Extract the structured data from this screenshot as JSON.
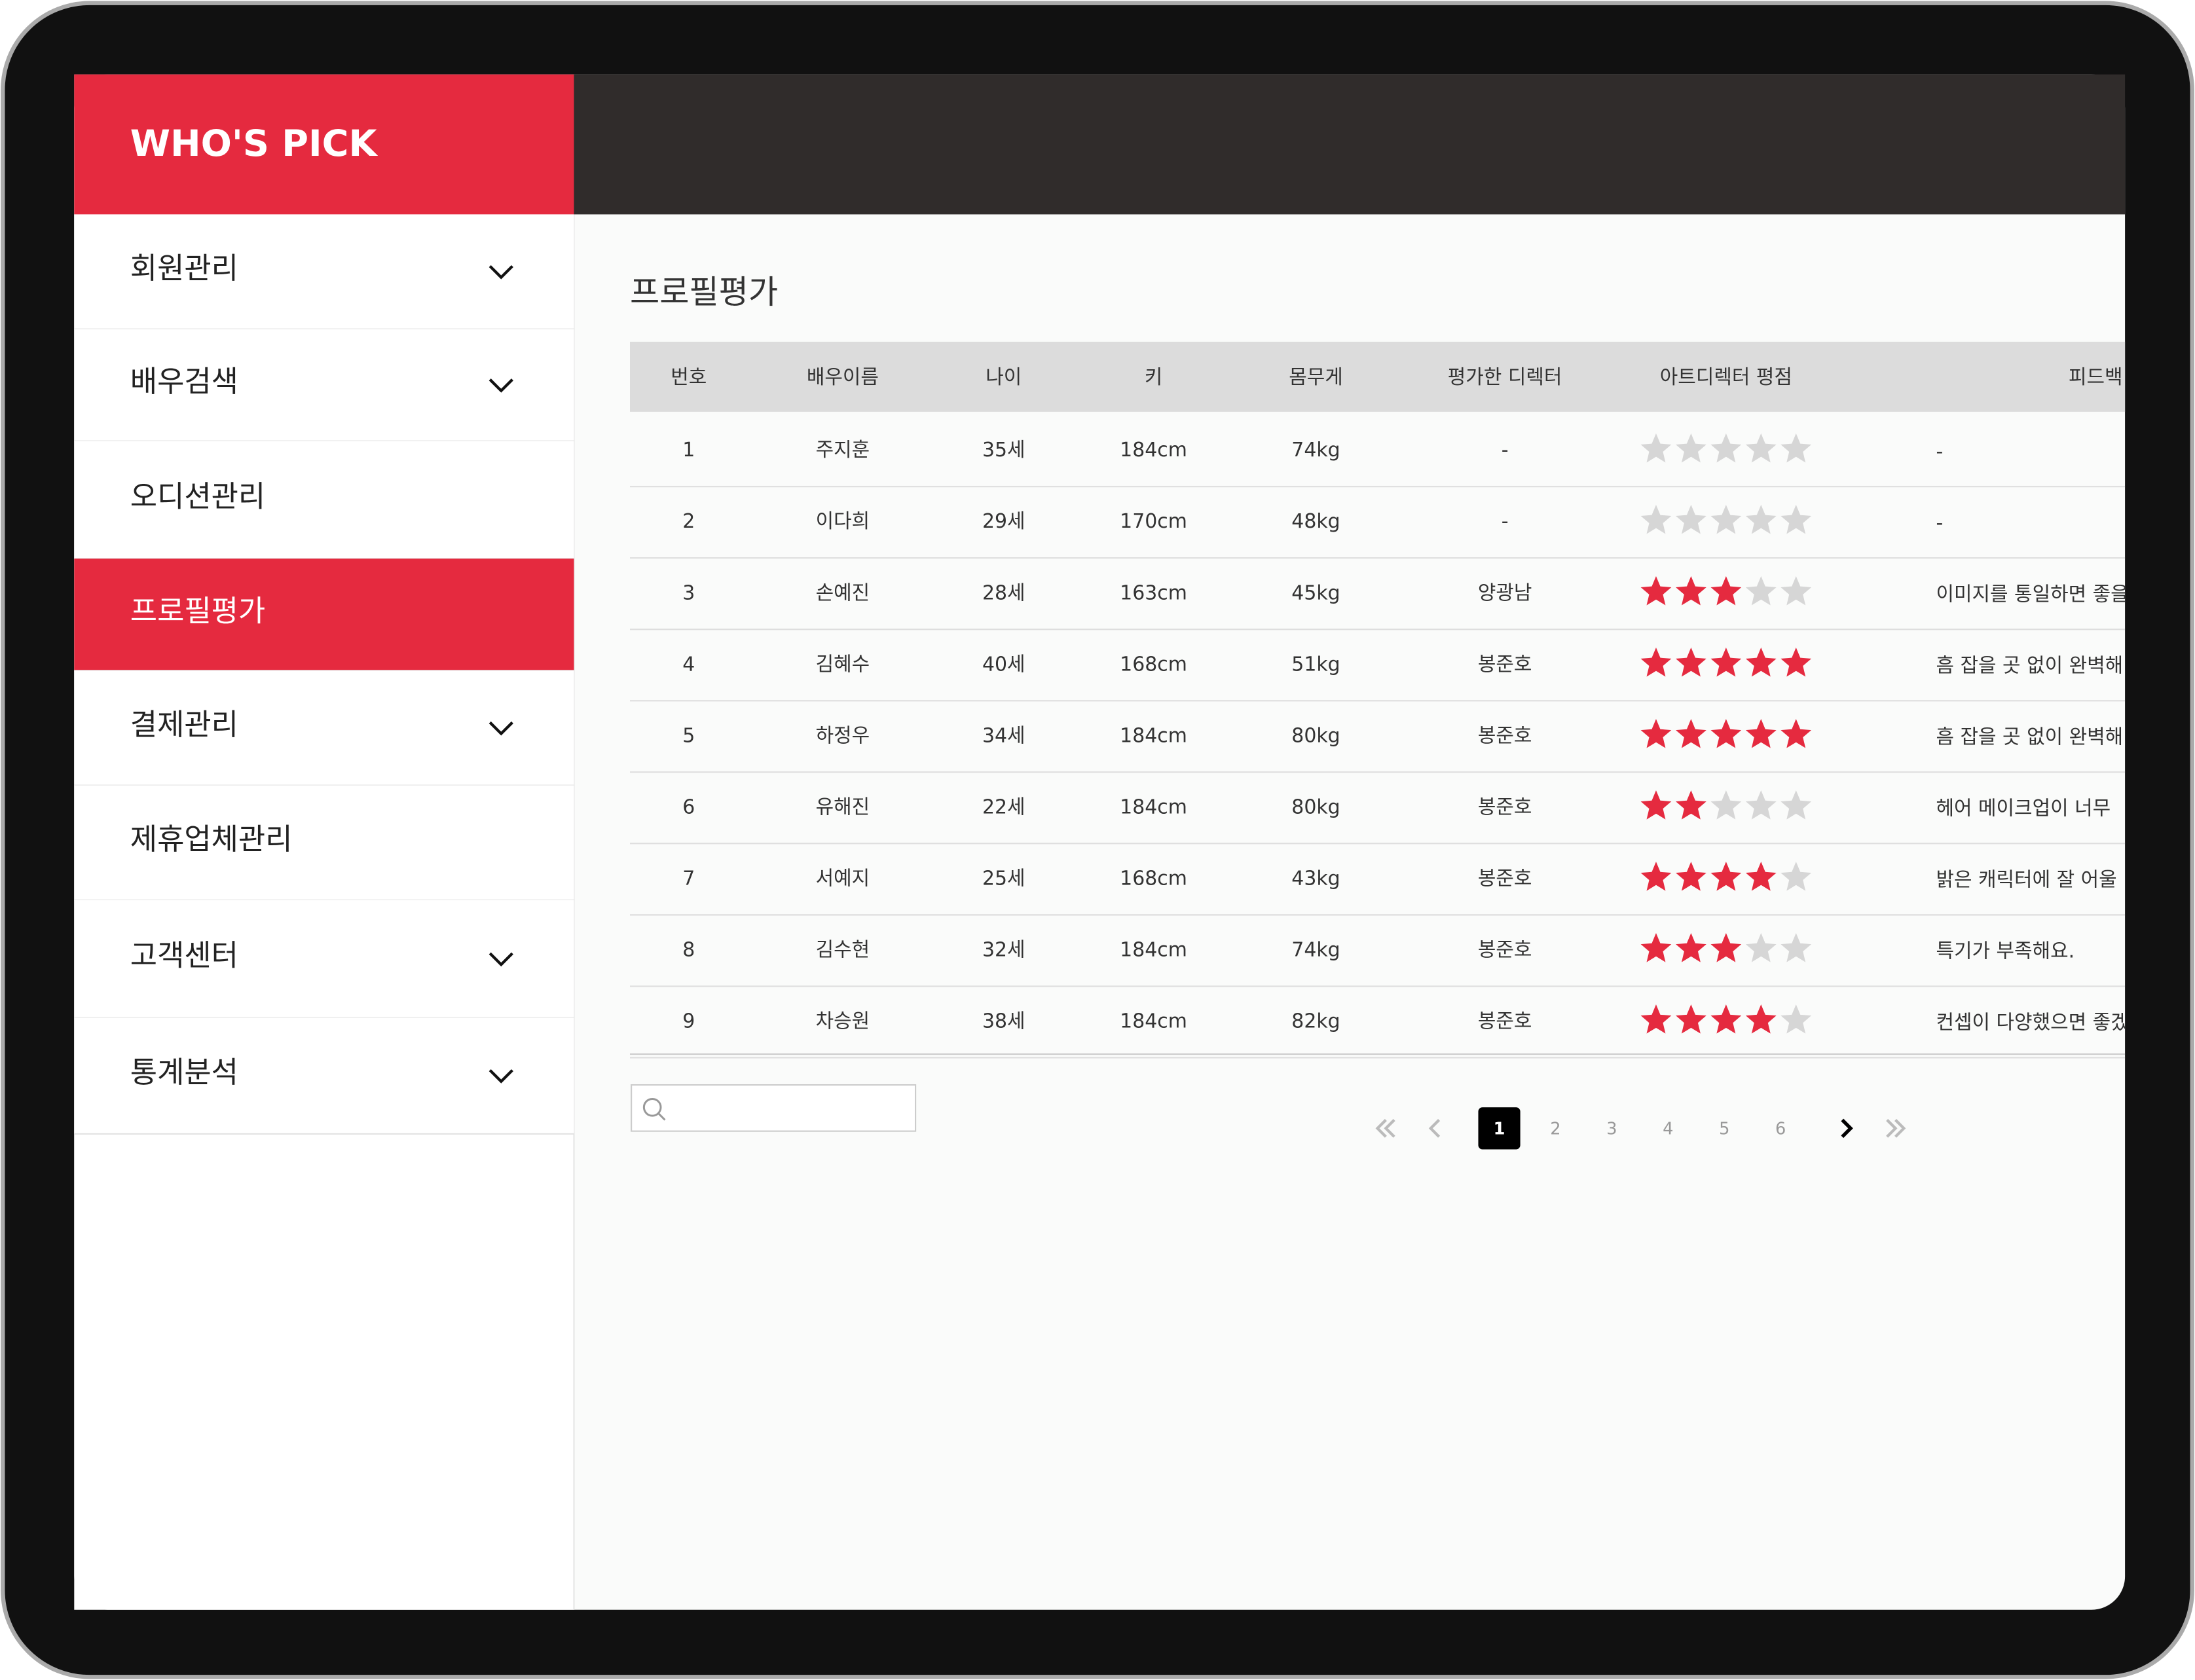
{
  "brand": "WHO'S PICK",
  "menu": [
    {
      "label": "회원관리",
      "expandable": true
    },
    {
      "label": "배우검색",
      "expandable": true
    },
    {
      "label": "오디션관리",
      "expandable": false
    },
    {
      "label": "프로필평가",
      "expandable": false,
      "active": true
    },
    {
      "label": "결제관리",
      "expandable": true
    },
    {
      "label": "제휴업체관리",
      "expandable": false
    },
    {
      "label": "고객센터",
      "expandable": true
    },
    {
      "label": "통계분석",
      "expandable": true
    }
  ],
  "page_title": "프로필평가",
  "table": {
    "columns": [
      "번호",
      "배우이름",
      "나이",
      "키",
      "몸무게",
      "평가한 디렉터",
      "아트디렉터 평점",
      "피드백"
    ],
    "star_max": 5,
    "rows": [
      {
        "no": "1",
        "name": "주지훈",
        "age": "35세",
        "height": "184cm",
        "weight": "74kg",
        "director": "-",
        "rating": 0,
        "feedback": "-"
      },
      {
        "no": "2",
        "name": "이다희",
        "age": "29세",
        "height": "170cm",
        "weight": "48kg",
        "director": "-",
        "rating": 0,
        "feedback": "-"
      },
      {
        "no": "3",
        "name": "손예진",
        "age": "28세",
        "height": "163cm",
        "weight": "45kg",
        "director": "양광남",
        "rating": 3,
        "feedback": "이미지를 통일하면 좋을"
      },
      {
        "no": "4",
        "name": "김혜수",
        "age": "40세",
        "height": "168cm",
        "weight": "51kg",
        "director": "봉준호",
        "rating": 5,
        "feedback": "흠 잡을 곳 없이 완벽해"
      },
      {
        "no": "5",
        "name": "하정우",
        "age": "34세",
        "height": "184cm",
        "weight": "80kg",
        "director": "봉준호",
        "rating": 5,
        "feedback": "흠 잡을 곳 없이 완벽해"
      },
      {
        "no": "6",
        "name": "유해진",
        "age": "22세",
        "height": "184cm",
        "weight": "80kg",
        "director": "봉준호",
        "rating": 2,
        "feedback": "헤어 메이크업이 너무"
      },
      {
        "no": "7",
        "name": "서예지",
        "age": "25세",
        "height": "168cm",
        "weight": "43kg",
        "director": "봉준호",
        "rating": 4,
        "feedback": "밝은 캐릭터에 잘 어울"
      },
      {
        "no": "8",
        "name": "김수현",
        "age": "32세",
        "height": "184cm",
        "weight": "74kg",
        "director": "봉준호",
        "rating": 3,
        "feedback": "특기가 부족해요."
      },
      {
        "no": "9",
        "name": "차승원",
        "age": "38세",
        "height": "184cm",
        "weight": "82kg",
        "director": "봉준호",
        "rating": 4,
        "feedback": "컨셉이 다양했으면 좋겠"
      }
    ]
  },
  "pagination": {
    "pages": [
      "1",
      "2",
      "3",
      "4",
      "5",
      "6"
    ],
    "current": 0
  }
}
